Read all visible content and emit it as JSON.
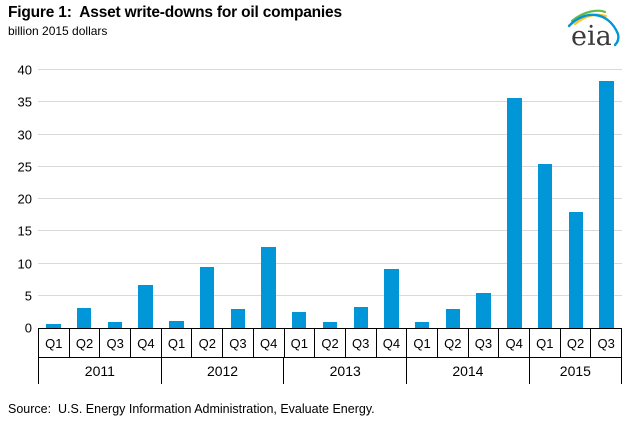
{
  "header": {
    "title": "Figure 1:  Asset write-downs for oil companies",
    "subtitle": "billion 2015 dollars",
    "logo_text": "eia"
  },
  "footer": {
    "source": "Source:  U.S. Energy Information Administration, Evaluate Energy."
  },
  "colors": {
    "bar": "#0096d7",
    "gridline": "#d9d9d9",
    "axis": "#000000",
    "logo_blue": "#0096d7",
    "logo_green": "#62bb46",
    "logo_yellow": "#ffc425"
  },
  "chart_data": {
    "type": "bar",
    "title": "Figure 1:  Asset write-downs for oil companies",
    "ylabel_unit": "billion 2015 dollars",
    "ylim": [
      0,
      40
    ],
    "ytick_step": 5,
    "grid": true,
    "legend_position": "none",
    "groups": [
      {
        "year": "2011",
        "quarters": [
          "Q1",
          "Q2",
          "Q3",
          "Q4"
        ],
        "values": [
          0.7,
          3.1,
          1.0,
          6.6
        ]
      },
      {
        "year": "2012",
        "quarters": [
          "Q1",
          "Q2",
          "Q3",
          "Q4"
        ],
        "values": [
          1.1,
          9.4,
          2.9,
          12.6
        ]
      },
      {
        "year": "2013",
        "quarters": [
          "Q1",
          "Q2",
          "Q3",
          "Q4"
        ],
        "values": [
          2.5,
          1.0,
          3.3,
          9.2
        ]
      },
      {
        "year": "2014",
        "quarters": [
          "Q1",
          "Q2",
          "Q3",
          "Q4"
        ],
        "values": [
          0.9,
          2.9,
          5.4,
          35.7
        ]
      },
      {
        "year": "2015",
        "quarters": [
          "Q1",
          "Q2",
          "Q3"
        ],
        "values": [
          25.4,
          18.0,
          38.3
        ]
      }
    ]
  }
}
